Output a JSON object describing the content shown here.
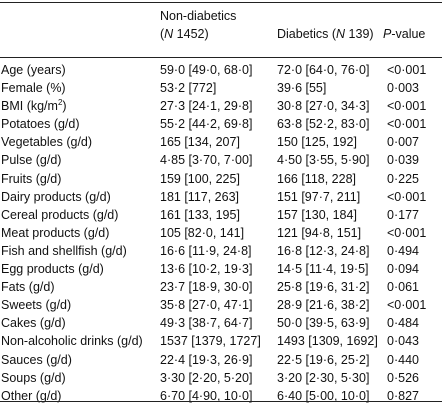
{
  "header": {
    "col_nondiabetic_line1": "Non-diabetics",
    "col_nondiabetic_line2_open": "(",
    "col_nondiabetic_line2_n": "N",
    "col_nondiabetic_line2_rest": " 1452)",
    "col_diabetic_name": "Diabetics (",
    "col_diabetic_n": "N",
    "col_diabetic_rest": " 139)",
    "col_p": "P",
    "col_p_rest": "-value"
  },
  "rows": [
    {
      "label": "Age (years)",
      "nondiabetic": "59·0 [49·0, 68·0]",
      "diabetic": "72·0 [64·0, 76·0]",
      "p": "<0·001"
    },
    {
      "label": "Female (%)",
      "nondiabetic": "53·2 [772]",
      "diabetic": "39·6 [55]",
      "p": "0·003"
    },
    {
      "label": "BMI (kg/m",
      "label_sup": "2",
      "label_after": ")",
      "nondiabetic": "27·3 [24·1, 29·8]",
      "diabetic": "30·8 [27·0, 34·3]",
      "p": "<0·001"
    },
    {
      "label": "Potatoes (g/d)",
      "nondiabetic": "55·2 [44·2, 69·8]",
      "diabetic": "63·8 [52·2, 83·0]",
      "p": "<0·001"
    },
    {
      "label": "Vegetables (g/d)",
      "nondiabetic": "165 [134, 207]",
      "diabetic": "150 [125, 192]",
      "p": "0·007"
    },
    {
      "label": "Pulse (g/d)",
      "nondiabetic": "4·85 [3·70, 7·00]",
      "diabetic": "4·50 [3·55, 5·90]",
      "p": "0·039"
    },
    {
      "label": "Fruits (g/d)",
      "nondiabetic": "159 [100, 225]",
      "diabetic": "166 [118, 228]",
      "p": "0·225"
    },
    {
      "label": "Dairy products (g/d)",
      "nondiabetic": "181 [117, 263]",
      "diabetic": "151 [97·7, 211]",
      "p": "<0·001"
    },
    {
      "label": "Cereal products (g/d)",
      "nondiabetic": "161 [133, 195]",
      "diabetic": "157 [130, 184]",
      "p": "0·177"
    },
    {
      "label": "Meat products (g/d)",
      "nondiabetic": "105 [82·0, 141]",
      "diabetic": "121 [94·8, 151]",
      "p": "<0·001"
    },
    {
      "label": "Fish and shellfish (g/d)",
      "nondiabetic": "16·6 [11·9, 24·8]",
      "diabetic": "16·8 [12·3, 24·8]",
      "p": "0·494"
    },
    {
      "label": "Egg products (g/d)",
      "nondiabetic": "13·6 [10·2, 19·3]",
      "diabetic": "14·5 [11·4, 19·5]",
      "p": "0·094"
    },
    {
      "label": "Fats (g/d)",
      "nondiabetic": "23·7 [18·9, 30·0]",
      "diabetic": "25·8 [19·6, 31·2]",
      "p": "0·061"
    },
    {
      "label": "Sweets (g/d)",
      "nondiabetic": "35·8 [27·0, 47·1]",
      "diabetic": "28·9 [21·6, 38·2]",
      "p": "<0·001"
    },
    {
      "label": "Cakes (g/d)",
      "nondiabetic": "49·3 [38·7, 64·7]",
      "diabetic": "50·0 [39·5, 63·9]",
      "p": "0·484"
    },
    {
      "label": "Non-alcoholic drinks (g/d)",
      "nondiabetic": "1537 [1379, 1727]",
      "diabetic": "1493 [1309, 1692]",
      "p": "0·043"
    },
    {
      "label": "Sauces (g/d)",
      "nondiabetic": "22·4 [19·3, 26·9]",
      "diabetic": "22·5 [19·6, 25·2]",
      "p": "0·440"
    },
    {
      "label": "Soups (g/d)",
      "nondiabetic": "3·30 [2·20, 5·20]",
      "diabetic": "3·20 [2·30, 5·30]",
      "p": "0·526"
    },
    {
      "label": "Other (g/d)",
      "nondiabetic": "6·70 [4·90, 10·0]",
      "diabetic": "6·40 [5·00, 10·0]",
      "p": "0·827"
    }
  ]
}
